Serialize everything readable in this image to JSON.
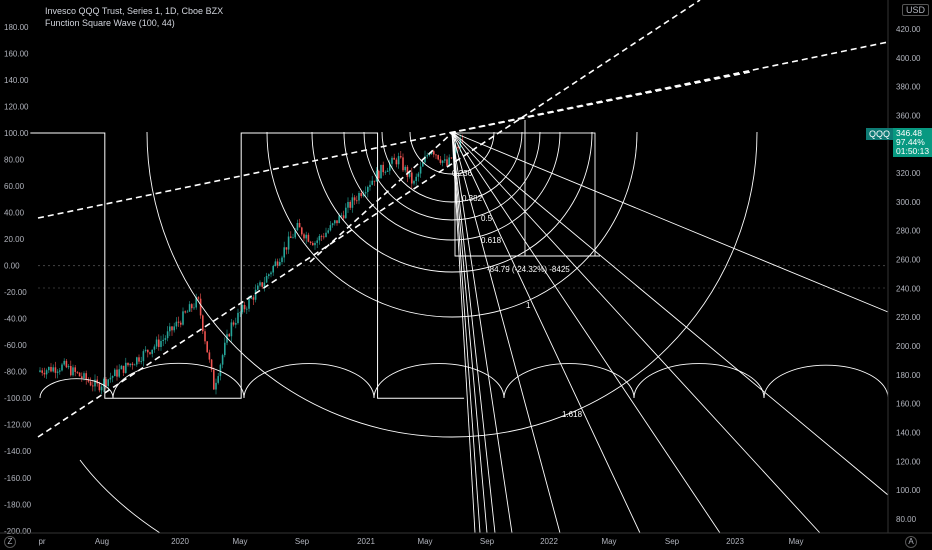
{
  "legend": {
    "line1": "Invesco QQQ Trust, Series 1, 1D, Cboe BZX",
    "line2": "Function Square Wave (100, 44)"
  },
  "currency": "USD",
  "price_badge": {
    "symbol": "QQQ",
    "price": "346.48",
    "percent": "97.44%",
    "countdown": "01:50:13"
  },
  "corner_icons": {
    "left": "Z",
    "right": "A"
  },
  "colors": {
    "background": "#000000",
    "drawing": "#ffffff",
    "candle_up": "#26a69a",
    "candle_down": "#ef5350",
    "badge": "#089981",
    "axis_text": "#b2b5be"
  },
  "chart_data": [
    {
      "type": "line",
      "title": "Function Square Wave (100, 44)",
      "ylim": [
        -200,
        200
      ],
      "yticks": [
        "180.00",
        "160.00",
        "140.00",
        "120.00",
        "100.00",
        "80.00",
        "60.00",
        "40.00",
        "20.00",
        "0.00",
        "-20.00",
        "-40.00",
        "-60.00",
        "-80.00",
        "-100.00",
        "-120.00",
        "-140.00",
        "-160.00",
        "-180.00",
        "-200.00"
      ],
      "series": [
        {
          "x": [
            "2019-04",
            "2019-08-15",
            "2019-08-15",
            "2020-04-20",
            "2020-04-20",
            "2020-12-25",
            "2020-12-25",
            "2021-06-01"
          ],
          "values": [
            100,
            100,
            -100,
            -100,
            100,
            100,
            -100,
            -100
          ]
        }
      ]
    },
    {
      "type": "line",
      "title": "Invesco QQQ Trust, Series 1, 1D, Cboe BZX",
      "ylim": [
        70,
        440
      ],
      "yticks": [
        "420.00",
        "400.00",
        "380.00",
        "360.00",
        "340.00",
        "320.00",
        "300.00",
        "280.00",
        "260.00",
        "240.00",
        "220.00",
        "200.00",
        "180.00",
        "160.00",
        "140.00",
        "120.00",
        "100.00",
        "80.00"
      ],
      "xticks": [
        "pr",
        "Aug",
        "2020",
        "May",
        "Sep",
        "2021",
        "May",
        "Sep",
        "2022",
        "May",
        "Sep",
        "2023",
        "May"
      ],
      "last_price": 346.48,
      "series": [
        {
          "name": "QQQ",
          "x": [
            "2019-04",
            "2019-06",
            "2019-08",
            "2019-10",
            "2019-12",
            "2020-02",
            "2020-03",
            "2020-04",
            "2020-06",
            "2020-08",
            "2020-09",
            "2020-10",
            "2020-12",
            "2021-01",
            "2021-02",
            "2021-03",
            "2021-04",
            "2021-05",
            "2021-06"
          ],
          "values": [
            182,
            186,
            172,
            188,
            205,
            232,
            172,
            214,
            245,
            282,
            272,
            282,
            310,
            322,
            330,
            312,
            338,
            325,
            346
          ]
        }
      ],
      "fibonacci_labels": [
        "0.236",
        "0.382",
        "0.5",
        "0.618",
        "1",
        "1.618"
      ],
      "annotation": "-84.79 (-24.32%) -8425"
    }
  ]
}
